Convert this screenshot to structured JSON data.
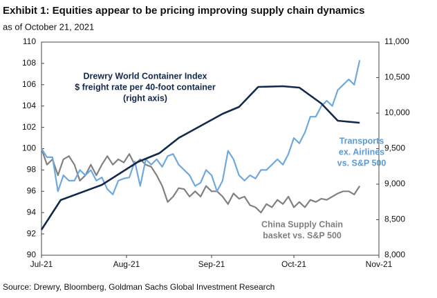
{
  "chart_data": {
    "type": "line",
    "title": "Exhibit 1: Equities appear to be pricing improving supply chain dynamics",
    "subtitle": "as of October 21, 2021",
    "source": "Source: Drewry, Bloomberg, Goldman Sachs Global Investment Research",
    "xlim": [
      0,
      123
    ],
    "xticks": [
      {
        "value": 0,
        "label": "Jul-21"
      },
      {
        "value": 31,
        "label": "Aug-21"
      },
      {
        "value": 62,
        "label": "Sep-21"
      },
      {
        "value": 92,
        "label": "Oct-21"
      },
      {
        "value": 123,
        "label": "Nov-21"
      }
    ],
    "ylim": [
      90,
      110
    ],
    "yticks": [
      90,
      92,
      94,
      96,
      98,
      100,
      102,
      104,
      106,
      108,
      110
    ],
    "y2lim": [
      8000,
      11000
    ],
    "y2ticks": [
      {
        "value": 8000,
        "label": "8,000"
      },
      {
        "value": 8500,
        "label": "8,500"
      },
      {
        "value": 9000,
        "label": "9,000"
      },
      {
        "value": 9500,
        "label": "9,500"
      },
      {
        "value": 10000,
        "label": "10,000"
      },
      {
        "value": 10500,
        "label": "10,500"
      },
      {
        "value": 11000,
        "label": "11,000"
      }
    ],
    "series": [
      {
        "label_lines": [
          "Drewry World Container Index",
          "$ freight rate per 40-foot container",
          "(right axis)"
        ],
        "color": "#13294b",
        "axis": "y2",
        "x": [
          0,
          7,
          22,
          35,
          43,
          50,
          66,
          72,
          79,
          88,
          94,
          102,
          108,
          116
        ],
        "values": [
          8359,
          8777,
          8990,
          9311,
          9437,
          9650,
          9990,
          10087,
          10369,
          10379,
          10359,
          10136,
          9893,
          9864
        ]
      },
      {
        "label_lines": [
          "Transports",
          "ex. Airlines",
          "vs. S&P 500"
        ],
        "color": "#6fa8dc",
        "x": [
          0,
          2,
          4,
          6,
          8,
          10,
          12,
          14,
          16,
          18,
          20,
          22,
          24,
          26,
          28,
          30,
          32,
          34,
          36,
          38,
          40,
          42,
          44,
          46,
          48,
          50,
          52,
          54,
          56,
          58,
          60,
          62,
          64,
          66,
          68,
          70,
          72,
          74,
          76,
          78,
          80,
          82,
          84,
          86,
          88,
          90,
          92,
          94,
          96,
          98,
          100,
          102,
          104,
          106,
          108,
          110,
          112,
          114,
          116
        ],
        "values": [
          100,
          99.2,
          99.2,
          96,
          97.5,
          97,
          97,
          98,
          97.5,
          98,
          97,
          97.3,
          96.2,
          95.7,
          97,
          97.2,
          97.3,
          98.8,
          96.5,
          99,
          98.5,
          99,
          98.3,
          99.3,
          99.5,
          98.5,
          98,
          97.5,
          96.5,
          96.8,
          98,
          97.5,
          96,
          97,
          99.8,
          99,
          97.5,
          97,
          97.5,
          97.2,
          98,
          98,
          98.5,
          99,
          98.5,
          99.5,
          101,
          100.5,
          101.5,
          103,
          103,
          104,
          104.5,
          104,
          105.5,
          106,
          106.5,
          106,
          108.3
        ]
      },
      {
        "label_lines": [
          "China Supply Chain",
          "basket vs. S&P 500"
        ],
        "color": "#808080",
        "x": [
          0,
          2,
          4,
          6,
          8,
          10,
          12,
          14,
          16,
          18,
          20,
          22,
          24,
          26,
          28,
          30,
          32,
          34,
          36,
          38,
          40,
          42,
          44,
          46,
          48,
          50,
          52,
          54,
          56,
          58,
          60,
          62,
          64,
          66,
          68,
          70,
          72,
          74,
          76,
          78,
          80,
          82,
          84,
          86,
          88,
          90,
          92,
          94,
          96,
          98,
          100,
          102,
          104,
          106,
          108,
          110,
          112,
          114,
          116
        ],
        "values": [
          100,
          98.5,
          99,
          97.5,
          99,
          99.3,
          98.5,
          97,
          97.5,
          98.5,
          97.5,
          98.5,
          99.3,
          98.5,
          99,
          98.7,
          99.5,
          98.5,
          99,
          98.5,
          98.3,
          97.5,
          96.5,
          95,
          95.5,
          96.3,
          96.2,
          95.5,
          96,
          95.5,
          96.5,
          96,
          96,
          95.5,
          94.8,
          95.8,
          95.3,
          95.5,
          94.7,
          94.5,
          94,
          94.8,
          94.5,
          95.2,
          94.8,
          95.5,
          94.5,
          95,
          94.5,
          95.2,
          95,
          95.3,
          95.2,
          95.5,
          95.8,
          96,
          96,
          95.7,
          96.5
        ]
      }
    ]
  }
}
